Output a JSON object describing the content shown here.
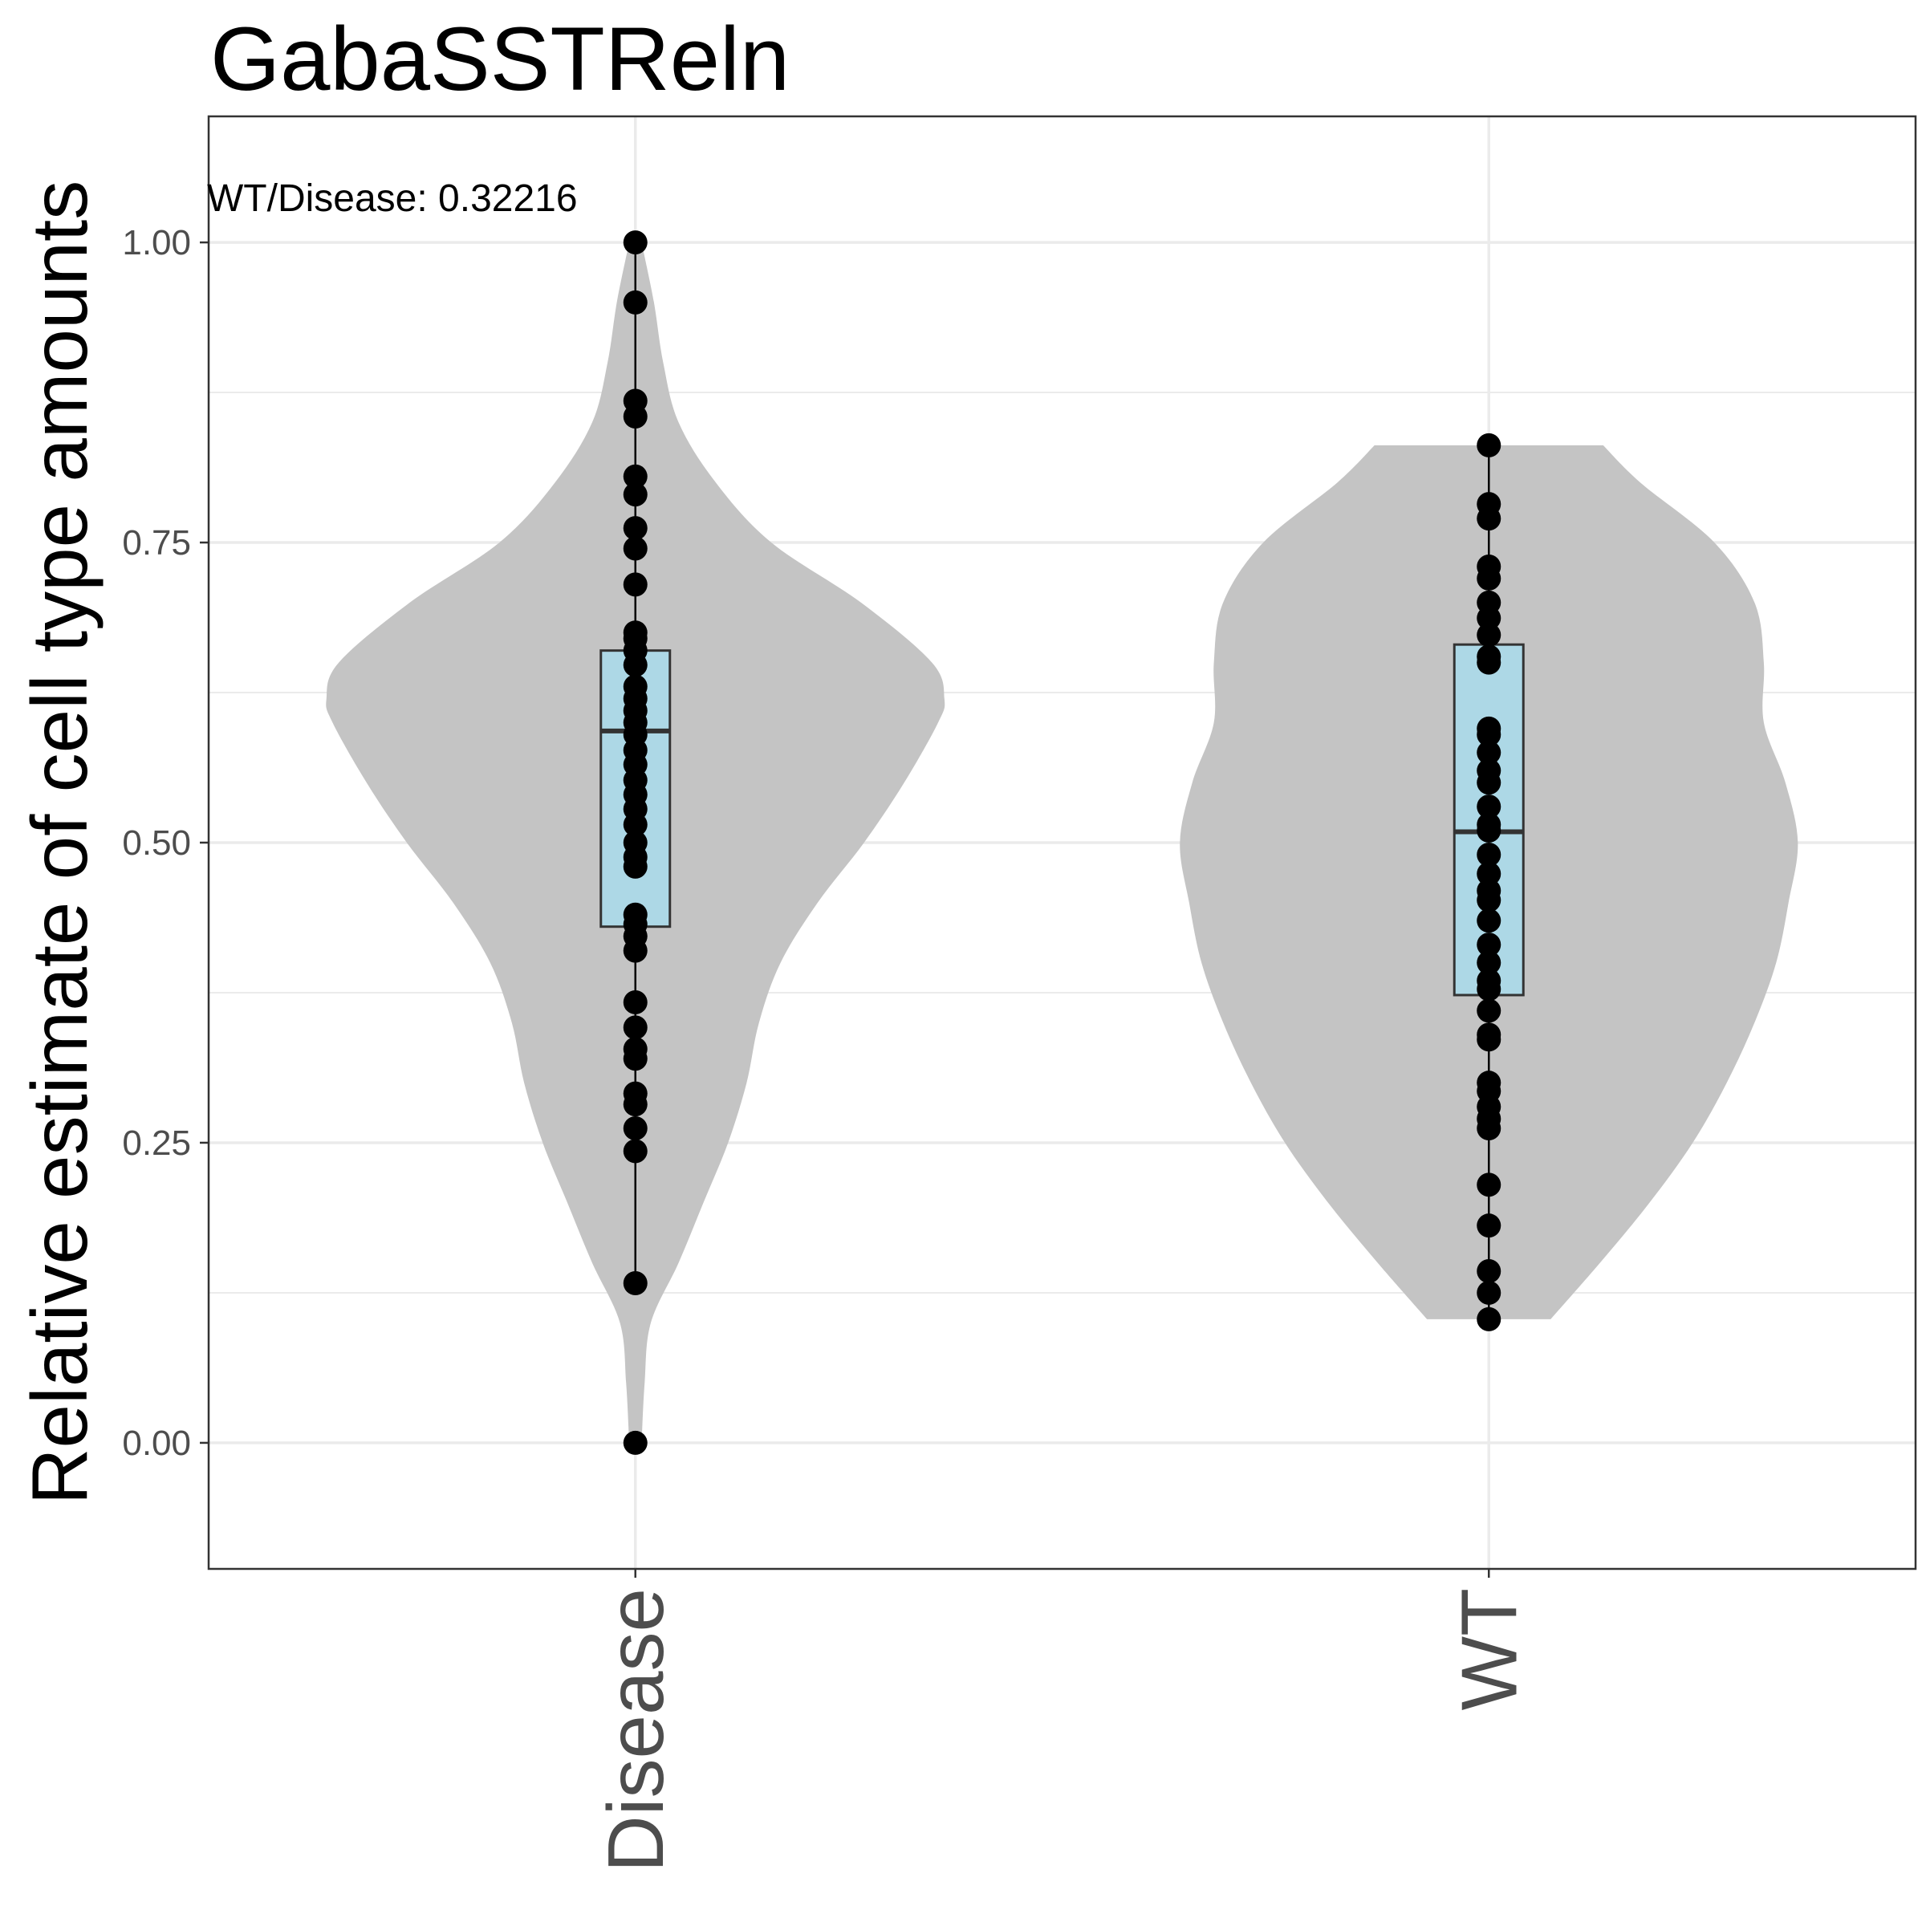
{
  "chart_data": {
    "type": "violin",
    "title": "GabaSSTReln",
    "xlabel": "",
    "ylabel": "Relative estimate of cell type amounts",
    "annotation": "WT/Disease: 0.32216",
    "categories": [
      "Disease",
      "WT"
    ],
    "ylim": [
      -0.105,
      1.105
    ],
    "yticks": [
      0.0,
      0.25,
      0.5,
      0.75,
      1.0
    ],
    "ytick_labels": [
      "0.00",
      "0.25",
      "0.50",
      "0.75",
      "1.00"
    ],
    "grid": true,
    "colors": {
      "violin_fill": "#c4c4c4",
      "box_fill": "#add8e6",
      "point": "#000000",
      "grid": "#ebebeb",
      "panel_border": "#333333"
    },
    "groups": [
      {
        "name": "Disease",
        "box": {
          "q1": 0.43,
          "median": 0.593,
          "q3": 0.66,
          "whisker_low": 0.133,
          "whisker_high": 1.0
        },
        "violin_width_profile": [
          [
            0.0,
            0.02
          ],
          [
            0.05,
            0.03
          ],
          [
            0.1,
            0.05
          ],
          [
            0.15,
            0.14
          ],
          [
            0.2,
            0.22
          ],
          [
            0.25,
            0.3
          ],
          [
            0.3,
            0.36
          ],
          [
            0.35,
            0.4
          ],
          [
            0.4,
            0.47
          ],
          [
            0.45,
            0.59
          ],
          [
            0.5,
            0.74
          ],
          [
            0.55,
            0.87
          ],
          [
            0.6,
            0.98
          ],
          [
            0.62,
            1.0
          ],
          [
            0.65,
            0.96
          ],
          [
            0.7,
            0.73
          ],
          [
            0.75,
            0.44
          ],
          [
            0.8,
            0.26
          ],
          [
            0.85,
            0.14
          ],
          [
            0.9,
            0.09
          ],
          [
            0.95,
            0.06
          ],
          [
            1.0,
            0.02
          ]
        ],
        "points": [
          0.0,
          0.133,
          0.243,
          0.262,
          0.282,
          0.291,
          0.32,
          0.328,
          0.346,
          0.367,
          0.41,
          0.422,
          0.432,
          0.44,
          0.48,
          0.488,
          0.5,
          0.515,
          0.528,
          0.54,
          0.552,
          0.565,
          0.577,
          0.59,
          0.6,
          0.61,
          0.62,
          0.63,
          0.648,
          0.66,
          0.67,
          0.675,
          0.715,
          0.745,
          0.762,
          0.79,
          0.805,
          0.855,
          0.868,
          0.95,
          1.0
        ]
      },
      {
        "name": "WT",
        "box": {
          "q1": 0.373,
          "median": 0.509,
          "q3": 0.665,
          "whisker_low": 0.103,
          "whisker_high": 0.831
        },
        "violin_width_profile": [
          [
            0.103,
            0.2
          ],
          [
            0.15,
            0.36
          ],
          [
            0.2,
            0.52
          ],
          [
            0.25,
            0.66
          ],
          [
            0.3,
            0.77
          ],
          [
            0.35,
            0.86
          ],
          [
            0.4,
            0.93
          ],
          [
            0.45,
            0.97
          ],
          [
            0.5,
            1.0
          ],
          [
            0.55,
            0.96
          ],
          [
            0.6,
            0.89
          ],
          [
            0.65,
            0.89
          ],
          [
            0.7,
            0.86
          ],
          [
            0.75,
            0.73
          ],
          [
            0.8,
            0.49
          ],
          [
            0.831,
            0.37
          ]
        ],
        "points": [
          0.103,
          0.125,
          0.143,
          0.181,
          0.215,
          0.262,
          0.27,
          0.28,
          0.293,
          0.3,
          0.336,
          0.34,
          0.36,
          0.378,
          0.385,
          0.4,
          0.415,
          0.435,
          0.452,
          0.46,
          0.474,
          0.49,
          0.51,
          0.515,
          0.53,
          0.55,
          0.56,
          0.575,
          0.59,
          0.595,
          0.65,
          0.655,
          0.673,
          0.687,
          0.7,
          0.72,
          0.73,
          0.77,
          0.782,
          0.831
        ]
      }
    ]
  }
}
